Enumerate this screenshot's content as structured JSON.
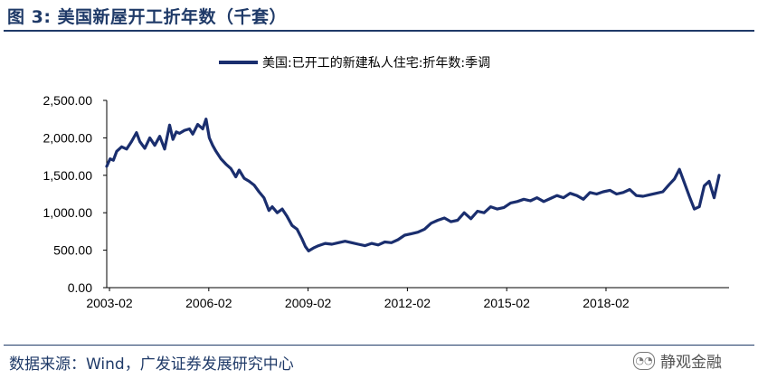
{
  "figure": {
    "title": "图 3:  美国新屋开工折年数（千套）",
    "source": "数据来源：Wind，广发证券发展研究中心",
    "watermark": "静观金融",
    "watermark_icon": "wechat-icon",
    "accent_color": "#1f3a68"
  },
  "chart_data": {
    "type": "line",
    "title": "",
    "xlabel": "",
    "ylabel": "",
    "ylim": [
      0,
      2500
    ],
    "yticks": [
      0,
      500,
      1000,
      1500,
      2000,
      2500
    ],
    "ytick_labels": [
      "0.00",
      "500.00",
      "1,000.00",
      "1,500.00",
      "2,000.00",
      "2,500.00"
    ],
    "xlim": [
      2003.0,
      2021.8
    ],
    "xticks": [
      2003.083,
      2006.083,
      2009.083,
      2012.083,
      2015.083,
      2018.083
    ],
    "xtick_labels": [
      "2003-02",
      "2006-02",
      "2009-02",
      "2012-02",
      "2015-02",
      "2018-02"
    ],
    "grid": false,
    "legend_position": "top-center",
    "series": [
      {
        "name": "美国:已开工的新建私人住宅:折年数:季调",
        "color": "#1a2e6e",
        "x": [
          2003.0,
          2003.1,
          2003.2,
          2003.3,
          2003.45,
          2003.6,
          2003.75,
          2003.9,
          2004.0,
          2004.15,
          2004.3,
          2004.45,
          2004.6,
          2004.75,
          2004.9,
          2005.0,
          2005.1,
          2005.2,
          2005.35,
          2005.5,
          2005.6,
          2005.75,
          2005.9,
          2006.0,
          2006.1,
          2006.2,
          2006.3,
          2006.45,
          2006.6,
          2006.75,
          2006.9,
          2007.0,
          2007.15,
          2007.3,
          2007.45,
          2007.6,
          2007.75,
          2007.9,
          2008.0,
          2008.15,
          2008.3,
          2008.45,
          2008.6,
          2008.75,
          2008.9,
          2009.0,
          2009.1,
          2009.25,
          2009.4,
          2009.6,
          2009.8,
          2010.0,
          2010.2,
          2010.4,
          2010.6,
          2010.8,
          2011.0,
          2011.2,
          2011.4,
          2011.6,
          2011.8,
          2012.0,
          2012.2,
          2012.4,
          2012.6,
          2012.8,
          2013.0,
          2013.2,
          2013.4,
          2013.6,
          2013.8,
          2014.0,
          2014.2,
          2014.4,
          2014.6,
          2014.8,
          2015.0,
          2015.2,
          2015.4,
          2015.6,
          2015.8,
          2016.0,
          2016.2,
          2016.4,
          2016.6,
          2016.8,
          2017.0,
          2017.2,
          2017.4,
          2017.6,
          2017.8,
          2018.0,
          2018.2,
          2018.4,
          2018.6,
          2018.8,
          2019.0,
          2019.2,
          2019.4,
          2019.6,
          2019.8,
          2020.0,
          2020.15,
          2020.3,
          2020.45,
          2020.6,
          2020.75,
          2020.9,
          2021.05,
          2021.2,
          2021.35,
          2021.5
        ],
        "y": [
          1620,
          1720,
          1700,
          1820,
          1880,
          1850,
          1950,
          2070,
          1950,
          1860,
          2000,
          1900,
          2020,
          1850,
          2170,
          1980,
          2080,
          2060,
          2100,
          2120,
          2050,
          2180,
          2120,
          2250,
          2000,
          1900,
          1820,
          1720,
          1650,
          1590,
          1480,
          1570,
          1460,
          1420,
          1370,
          1280,
          1200,
          1030,
          1080,
          1000,
          1050,
          950,
          830,
          780,
          650,
          550,
          490,
          530,
          560,
          590,
          580,
          600,
          620,
          600,
          580,
          560,
          590,
          570,
          610,
          600,
          640,
          700,
          720,
          740,
          780,
          860,
          900,
          930,
          880,
          900,
          1000,
          920,
          1020,
          1000,
          1080,
          1050,
          1070,
          1130,
          1150,
          1180,
          1160,
          1200,
          1150,
          1190,
          1230,
          1200,
          1260,
          1230,
          1180,
          1270,
          1250,
          1280,
          1300,
          1250,
          1270,
          1310,
          1230,
          1220,
          1240,
          1260,
          1280,
          1380,
          1450,
          1580,
          1400,
          1220,
          1050,
          1080,
          1360,
          1420,
          1200,
          1500
        ]
      }
    ]
  }
}
